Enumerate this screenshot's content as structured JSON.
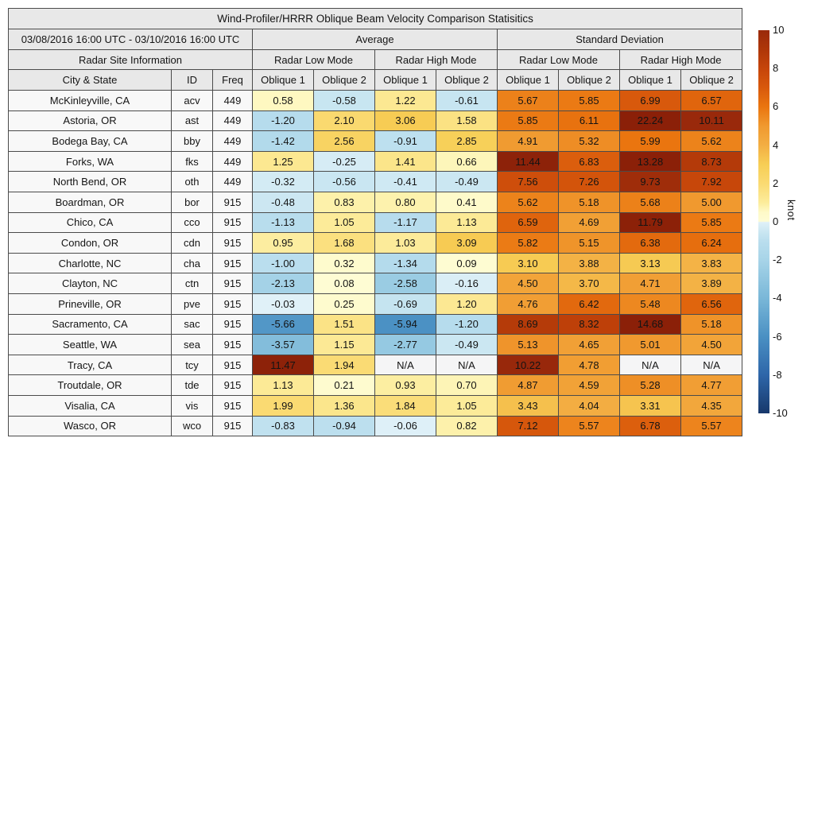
{
  "chart_data": {
    "type": "heatmap-table",
    "title": "Wind-Profiler/HRRR Oblique Beam Velocity Comparison Statisitics",
    "date_range": "03/08/2016 16:00 UTC - 03/10/2016 16:00 UTC",
    "site_info_header": "Radar Site Information",
    "group_headers": [
      "Average",
      "Standard Deviation"
    ],
    "mode_headers": [
      "Radar Low Mode",
      "Radar High Mode"
    ],
    "oblique_headers": [
      "Oblique 1",
      "Oblique 2"
    ],
    "columns": [
      "City & State",
      "ID",
      "Freq"
    ],
    "na_label": "N/A",
    "value_columns": [
      "Average Radar Low Mode Oblique 1",
      "Average Radar Low Mode Oblique 2",
      "Average Radar High Mode Oblique 1",
      "Average Radar High Mode Oblique 2",
      "Standard Deviation Radar Low Mode Oblique 1",
      "Standard Deviation Radar Low Mode Oblique 2",
      "Standard Deviation Radar High Mode Oblique 1",
      "Standard Deviation Radar High Mode Oblique 2"
    ],
    "rows": [
      {
        "city": "McKinleyville, CA",
        "id": "acv",
        "freq": "449",
        "values": [
          0.58,
          -0.58,
          1.22,
          -0.61,
          5.67,
          5.85,
          6.99,
          6.57
        ]
      },
      {
        "city": "Astoria, OR",
        "id": "ast",
        "freq": "449",
        "values": [
          -1.2,
          2.1,
          3.06,
          1.58,
          5.85,
          6.11,
          22.24,
          10.11
        ]
      },
      {
        "city": "Bodega Bay, CA",
        "id": "bby",
        "freq": "449",
        "values": [
          -1.42,
          2.56,
          -0.91,
          2.85,
          4.91,
          5.32,
          5.99,
          5.62
        ]
      },
      {
        "city": "Forks, WA",
        "id": "fks",
        "freq": "449",
        "values": [
          1.25,
          -0.25,
          1.41,
          0.66,
          11.44,
          6.83,
          13.28,
          8.73
        ]
      },
      {
        "city": "North Bend, OR",
        "id": "oth",
        "freq": "449",
        "values": [
          -0.32,
          -0.56,
          -0.41,
          -0.49,
          7.56,
          7.26,
          9.73,
          7.92
        ]
      },
      {
        "city": "Boardman, OR",
        "id": "bor",
        "freq": "915",
        "values": [
          -0.48,
          0.83,
          0.8,
          0.41,
          5.62,
          5.18,
          5.68,
          5.0
        ]
      },
      {
        "city": "Chico, CA",
        "id": "cco",
        "freq": "915",
        "values": [
          -1.13,
          1.05,
          -1.17,
          1.13,
          6.59,
          4.69,
          11.79,
          5.85
        ]
      },
      {
        "city": "Condon, OR",
        "id": "cdn",
        "freq": "915",
        "values": [
          0.95,
          1.68,
          1.03,
          3.09,
          5.82,
          5.15,
          6.38,
          6.24
        ]
      },
      {
        "city": "Charlotte, NC",
        "id": "cha",
        "freq": "915",
        "values": [
          -1.0,
          0.32,
          -1.34,
          0.09,
          3.1,
          3.88,
          3.13,
          3.83
        ]
      },
      {
        "city": "Clayton, NC",
        "id": "ctn",
        "freq": "915",
        "values": [
          -2.13,
          0.08,
          -2.58,
          -0.16,
          4.5,
          3.7,
          4.71,
          3.89
        ]
      },
      {
        "city": "Prineville, OR",
        "id": "pve",
        "freq": "915",
        "values": [
          -0.03,
          0.25,
          -0.69,
          1.2,
          4.76,
          6.42,
          5.48,
          6.56
        ]
      },
      {
        "city": "Sacramento, CA",
        "id": "sac",
        "freq": "915",
        "values": [
          -5.66,
          1.51,
          -5.94,
          -1.2,
          8.69,
          8.32,
          14.68,
          5.18
        ]
      },
      {
        "city": "Seattle, WA",
        "id": "sea",
        "freq": "915",
        "values": [
          -3.57,
          1.15,
          -2.77,
          -0.49,
          5.13,
          4.65,
          5.01,
          4.5
        ]
      },
      {
        "city": "Tracy, CA",
        "id": "tcy",
        "freq": "915",
        "values": [
          11.47,
          1.94,
          null,
          null,
          10.22,
          4.78,
          null,
          null
        ]
      },
      {
        "city": "Troutdale, OR",
        "id": "tde",
        "freq": "915",
        "values": [
          1.13,
          0.21,
          0.93,
          0.7,
          4.87,
          4.59,
          5.28,
          4.77
        ]
      },
      {
        "city": "Visalia, CA",
        "id": "vis",
        "freq": "915",
        "values": [
          1.99,
          1.36,
          1.84,
          1.05,
          3.43,
          4.04,
          3.31,
          4.35
        ]
      },
      {
        "city": "Wasco, OR",
        "id": "wco",
        "freq": "915",
        "values": [
          -0.83,
          -0.94,
          -0.06,
          0.82,
          7.12,
          5.57,
          6.78,
          5.57
        ]
      }
    ],
    "colorbar": {
      "label": "knot",
      "min": -10,
      "max": 10,
      "ticks": [
        10,
        8,
        6,
        4,
        2,
        0,
        -2,
        -4,
        -6,
        -8,
        -10
      ],
      "stops": [
        [
          -10,
          "#17386b"
        ],
        [
          -8,
          "#2e66a9"
        ],
        [
          -6,
          "#4a90c3"
        ],
        [
          -4,
          "#79b7d8"
        ],
        [
          -2,
          "#a7d4e8"
        ],
        [
          -1,
          "#badeee"
        ],
        [
          -0.5,
          "#cbe7f2"
        ],
        [
          -0.02,
          "#e0f1f8"
        ],
        [
          0.02,
          "#fefcd4"
        ],
        [
          0.5,
          "#fefac8"
        ],
        [
          1,
          "#fcec9b"
        ],
        [
          2,
          "#fada72"
        ],
        [
          3,
          "#f7ce55"
        ],
        [
          4,
          "#f3ae43"
        ],
        [
          5,
          "#f0992f"
        ],
        [
          6,
          "#ea750f"
        ],
        [
          7,
          "#d8590c"
        ],
        [
          8,
          "#c6450a"
        ],
        [
          9,
          "#ae3608"
        ],
        [
          10,
          "#9a2a0b"
        ],
        [
          11,
          "#8f2309"
        ],
        [
          12,
          "#8b2008"
        ]
      ]
    },
    "styles": {
      "header_bg": "#e8e8e8",
      "rowhead_bg": "#f8f8f8",
      "na_bg": "#f5f5f6",
      "border_color": "#4b4b4b"
    }
  }
}
